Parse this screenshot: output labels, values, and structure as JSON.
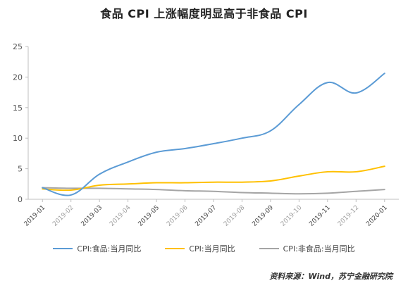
{
  "chart_data": {
    "type": "line",
    "title": "食品 CPI 上涨幅度明显高于非食品 CPI",
    "categories": [
      "2019-01",
      "2019-02",
      "2019-03",
      "2019-04",
      "2019-05",
      "2019-06",
      "2019-07",
      "2019-08",
      "2019-09",
      "2019-10",
      "2019-11",
      "2019-12",
      "2020-01"
    ],
    "ylim": [
      0,
      25
    ],
    "yticks": [
      0,
      5,
      10,
      15,
      20,
      25
    ],
    "grid": false,
    "legend_position": "bottom",
    "series": [
      {
        "name": "CPI:食品:当月同比",
        "color": "#5b9bd5",
        "values": [
          1.9,
          0.7,
          4.1,
          6.1,
          7.7,
          8.3,
          9.1,
          10.0,
          11.2,
          15.5,
          19.1,
          17.4,
          20.6
        ]
      },
      {
        "name": "CPI:当月同比",
        "color": "#ffc000",
        "values": [
          1.7,
          1.5,
          2.3,
          2.5,
          2.7,
          2.7,
          2.8,
          2.8,
          3.0,
          3.8,
          4.5,
          4.5,
          5.4
        ]
      },
      {
        "name": "CPI:非食品:当月同比",
        "color": "#a5a5a5",
        "values": [
          1.9,
          1.8,
          1.8,
          1.7,
          1.6,
          1.4,
          1.3,
          1.1,
          1.0,
          0.9,
          1.0,
          1.3,
          1.6
        ]
      }
    ]
  },
  "source": "资料来源：Wind，苏宁金融研究院"
}
